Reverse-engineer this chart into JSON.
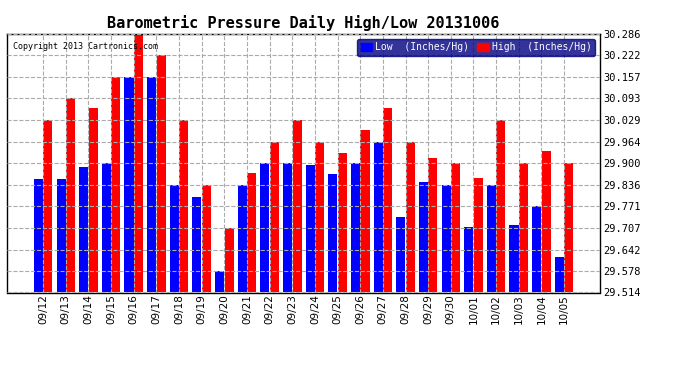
{
  "title": "Barometric Pressure Daily High/Low 20131006",
  "copyright": "Copyright 2013 Cartronics.com",
  "legend_low": "Low  (Inches/Hg)",
  "legend_high": "High  (Inches/Hg)",
  "dates": [
    "09/12",
    "09/13",
    "09/14",
    "09/15",
    "09/16",
    "09/17",
    "09/18",
    "09/19",
    "09/20",
    "09/21",
    "09/22",
    "09/23",
    "09/24",
    "09/25",
    "09/26",
    "09/27",
    "09/28",
    "09/29",
    "09/30",
    "10/01",
    "10/02",
    "10/03",
    "10/04",
    "10/05"
  ],
  "low_values": [
    29.853,
    29.853,
    29.889,
    29.9,
    30.157,
    30.157,
    29.836,
    29.8,
    29.578,
    29.836,
    29.9,
    29.9,
    29.893,
    29.868,
    29.9,
    29.964,
    29.739,
    29.843,
    29.836,
    29.708,
    29.836,
    29.715,
    29.771,
    29.621
  ],
  "high_values": [
    30.029,
    30.093,
    30.065,
    30.157,
    30.286,
    30.222,
    30.029,
    29.836,
    29.707,
    29.871,
    29.964,
    30.029,
    29.964,
    29.929,
    30.0,
    30.065,
    29.964,
    29.914,
    29.9,
    29.857,
    30.029,
    29.9,
    29.935,
    29.9
  ],
  "y_min": 29.514,
  "y_max": 30.286,
  "y_ticks": [
    29.514,
    29.578,
    29.642,
    29.707,
    29.771,
    29.836,
    29.9,
    29.964,
    30.029,
    30.093,
    30.157,
    30.222,
    30.286
  ],
  "low_color": "#0000ff",
  "high_color": "#ff0000",
  "bg_color": "#ffffff",
  "grid_color": "#aaaaaa",
  "title_fontsize": 11,
  "tick_fontsize": 7.5
}
